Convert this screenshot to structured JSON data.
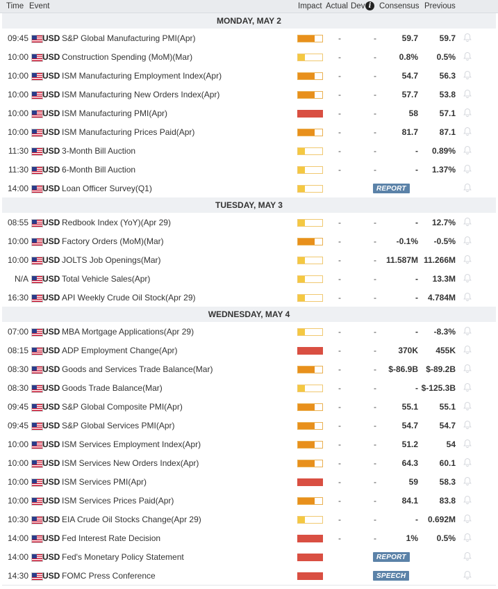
{
  "colors": {
    "low": "#f4c842",
    "medium": "#e8901c",
    "high": "#d94f42",
    "badge": "#5b82a8"
  },
  "header": {
    "time": "Time",
    "event": "Event",
    "impact": "Impact",
    "actual": "Actual",
    "dev": "Dev",
    "consensus": "Consensus",
    "previous": "Previous"
  },
  "days": [
    {
      "label": "MONDAY, MAY 2",
      "events": [
        {
          "time": "09:45",
          "currency": "USD",
          "event": "S&P Global Manufacturing PMI(Apr)",
          "impact": "medium",
          "actual": "-",
          "dev": "-",
          "consensus": "59.7",
          "previous": "59.7"
        },
        {
          "time": "10:00",
          "currency": "USD",
          "event": "Construction Spending (MoM)(Mar)",
          "impact": "low",
          "actual": "-",
          "dev": "-",
          "consensus": "0.8%",
          "previous": "0.5%"
        },
        {
          "time": "10:00",
          "currency": "USD",
          "event": "ISM Manufacturing Employment Index(Apr)",
          "impact": "medium",
          "actual": "-",
          "dev": "-",
          "consensus": "54.7",
          "previous": "56.3"
        },
        {
          "time": "10:00",
          "currency": "USD",
          "event": "ISM Manufacturing New Orders Index(Apr)",
          "impact": "medium",
          "actual": "-",
          "dev": "-",
          "consensus": "57.7",
          "previous": "53.8"
        },
        {
          "time": "10:00",
          "currency": "USD",
          "event": "ISM Manufacturing PMI(Apr)",
          "impact": "high",
          "actual": "-",
          "dev": "-",
          "consensus": "58",
          "previous": "57.1"
        },
        {
          "time": "10:00",
          "currency": "USD",
          "event": "ISM Manufacturing Prices Paid(Apr)",
          "impact": "medium",
          "actual": "-",
          "dev": "-",
          "consensus": "81.7",
          "previous": "87.1"
        },
        {
          "time": "11:30",
          "currency": "USD",
          "event": "3-Month Bill Auction",
          "impact": "low",
          "actual": "-",
          "dev": "-",
          "consensus": "-",
          "previous": "0.89%"
        },
        {
          "time": "11:30",
          "currency": "USD",
          "event": "6-Month Bill Auction",
          "impact": "low",
          "actual": "-",
          "dev": "-",
          "consensus": "-",
          "previous": "1.37%"
        },
        {
          "time": "14:00",
          "currency": "USD",
          "event": "Loan Officer Survey(Q1)",
          "impact": "low",
          "badge": "REPORT"
        }
      ]
    },
    {
      "label": "TUESDAY, MAY 3",
      "events": [
        {
          "time": "08:55",
          "currency": "USD",
          "event": "Redbook Index (YoY)(Apr 29)",
          "impact": "low",
          "actual": "-",
          "dev": "-",
          "consensus": "-",
          "previous": "12.7%"
        },
        {
          "time": "10:00",
          "currency": "USD",
          "event": "Factory Orders (MoM)(Mar)",
          "impact": "medium",
          "actual": "-",
          "dev": "-",
          "consensus": "-0.1%",
          "previous": "-0.5%"
        },
        {
          "time": "10:00",
          "currency": "USD",
          "event": "JOLTS Job Openings(Mar)",
          "impact": "low",
          "actual": "-",
          "dev": "-",
          "consensus": "11.587M",
          "previous": "11.266M"
        },
        {
          "time": "N/A",
          "currency": "USD",
          "event": "Total Vehicle Sales(Apr)",
          "impact": "low",
          "actual": "-",
          "dev": "-",
          "consensus": "-",
          "previous": "13.3M"
        },
        {
          "time": "16:30",
          "currency": "USD",
          "event": "API Weekly Crude Oil Stock(Apr 29)",
          "impact": "low",
          "actual": "-",
          "dev": "-",
          "consensus": "-",
          "previous": "4.784M"
        }
      ]
    },
    {
      "label": "WEDNESDAY, MAY 4",
      "events": [
        {
          "time": "07:00",
          "currency": "USD",
          "event": "MBA Mortgage Applications(Apr 29)",
          "impact": "low",
          "actual": "-",
          "dev": "-",
          "consensus": "-",
          "previous": "-8.3%"
        },
        {
          "time": "08:15",
          "currency": "USD",
          "event": "ADP Employment Change(Apr)",
          "impact": "high",
          "actual": "-",
          "dev": "-",
          "consensus": "370K",
          "previous": "455K"
        },
        {
          "time": "08:30",
          "currency": "USD",
          "event": "Goods and Services Trade Balance(Mar)",
          "impact": "medium",
          "actual": "-",
          "dev": "-",
          "consensus": "$-86.9B",
          "previous": "$-89.2B"
        },
        {
          "time": "08:30",
          "currency": "USD",
          "event": "Goods Trade Balance(Mar)",
          "impact": "low",
          "actual": "-",
          "dev": "-",
          "consensus": "-",
          "previous": "$-125.3B"
        },
        {
          "time": "09:45",
          "currency": "USD",
          "event": "S&P Global Composite PMI(Apr)",
          "impact": "medium",
          "actual": "-",
          "dev": "-",
          "consensus": "55.1",
          "previous": "55.1"
        },
        {
          "time": "09:45",
          "currency": "USD",
          "event": "S&P Global Services PMI(Apr)",
          "impact": "medium",
          "actual": "-",
          "dev": "-",
          "consensus": "54.7",
          "previous": "54.7"
        },
        {
          "time": "10:00",
          "currency": "USD",
          "event": "ISM Services Employment Index(Apr)",
          "impact": "medium",
          "actual": "-",
          "dev": "-",
          "consensus": "51.2",
          "previous": "54"
        },
        {
          "time": "10:00",
          "currency": "USD",
          "event": "ISM Services New Orders Index(Apr)",
          "impact": "medium",
          "actual": "-",
          "dev": "-",
          "consensus": "64.3",
          "previous": "60.1"
        },
        {
          "time": "10:00",
          "currency": "USD",
          "event": "ISM Services PMI(Apr)",
          "impact": "high",
          "actual": "-",
          "dev": "-",
          "consensus": "59",
          "previous": "58.3"
        },
        {
          "time": "10:00",
          "currency": "USD",
          "event": "ISM Services Prices Paid(Apr)",
          "impact": "medium",
          "actual": "-",
          "dev": "-",
          "consensus": "84.1",
          "previous": "83.8"
        },
        {
          "time": "10:30",
          "currency": "USD",
          "event": "EIA Crude Oil Stocks Change(Apr 29)",
          "impact": "low",
          "actual": "-",
          "dev": "-",
          "consensus": "-",
          "previous": "0.692M"
        },
        {
          "time": "14:00",
          "currency": "USD",
          "event": "Fed Interest Rate Decision",
          "impact": "high",
          "actual": "-",
          "dev": "-",
          "consensus": "1%",
          "previous": "0.5%"
        },
        {
          "time": "14:00",
          "currency": "USD",
          "event": "Fed's Monetary Policy Statement",
          "impact": "high",
          "badge": "REPORT"
        },
        {
          "time": "14:30",
          "currency": "USD",
          "event": "FOMC Press Conference",
          "impact": "high",
          "badge": "SPEECH"
        }
      ]
    }
  ]
}
